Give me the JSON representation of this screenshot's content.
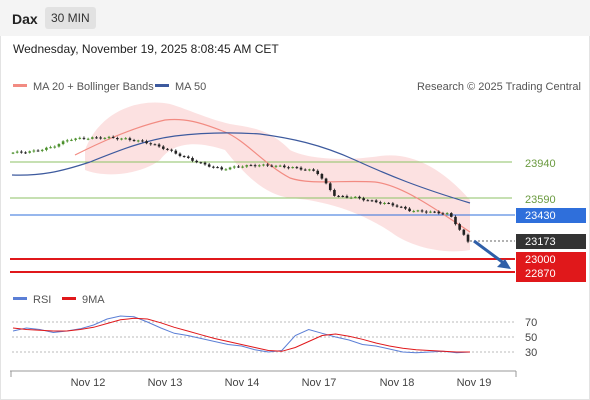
{
  "header": {
    "title": "Dax",
    "timeframe": "30 MIN"
  },
  "datetime": "Wednesday, November 19, 2025 8:08:45 AM CET",
  "legend": {
    "item1": "MA 20 + Bollinger Bands",
    "item2": "MA 50",
    "credit": "Research © 2025 Trading Central"
  },
  "rsi_legend": {
    "item1": "RSI",
    "item2": "9MA"
  },
  "colors": {
    "ma20": "#f28b82",
    "ma50": "#3d5a9e",
    "band": "#fbdcdc",
    "up": "#4a8f2a",
    "down": "#222222",
    "green_level": "#8cc265",
    "blue_level": "#2f6fdb",
    "red_level": "#e0181b",
    "rsi": "#5b7fd6",
    "rsi_ma": "#e0181b"
  },
  "chart_data": [
    {
      "type": "candlestick",
      "title": "",
      "x_ticks": [
        "Nov 12",
        "Nov 13",
        "Nov 14",
        "Nov 17",
        "Nov 18",
        "Nov 19"
      ],
      "series": [
        {
          "name": "MA 20 + Bollinger Bands"
        },
        {
          "name": "MA 50"
        }
      ],
      "close_profile": [
        24030,
        24040,
        24080,
        24160,
        24170,
        24175,
        24160,
        24130,
        24070,
        23990,
        23920,
        23870,
        23900,
        23910,
        23900,
        23880,
        23850,
        23610,
        23600,
        23560,
        23530,
        23470,
        23460,
        23440,
        23173
      ],
      "levels": [
        {
          "value": "23940",
          "kind": "resistance"
        },
        {
          "value": "23590",
          "kind": "resistance"
        },
        {
          "value": "23430",
          "kind": "ma50"
        },
        {
          "value": "23173",
          "kind": "last"
        },
        {
          "value": "23000",
          "kind": "support"
        },
        {
          "value": "22870",
          "kind": "support"
        }
      ],
      "outlook": "down"
    },
    {
      "type": "line",
      "title": "",
      "series": [
        {
          "name": "RSI",
          "values": [
            58,
            62,
            60,
            56,
            58,
            61,
            66,
            74,
            78,
            77,
            70,
            62,
            55,
            52,
            48,
            44,
            40,
            38,
            33,
            30,
            32,
            52,
            60,
            55,
            50,
            46,
            40,
            38,
            34,
            30,
            29,
            30,
            31,
            29,
            30
          ]
        },
        {
          "name": "9MA",
          "values": [
            62,
            60,
            59,
            58,
            58,
            60,
            63,
            68,
            73,
            75,
            74,
            69,
            63,
            58,
            53,
            48,
            44,
            40,
            36,
            32,
            31,
            36,
            44,
            52,
            54,
            51,
            47,
            42,
            38,
            35,
            33,
            32,
            31,
            30,
            30
          ]
        }
      ],
      "y_ticks": [
        "70",
        "50",
        "30"
      ],
      "ylim": [
        20,
        85
      ]
    }
  ]
}
